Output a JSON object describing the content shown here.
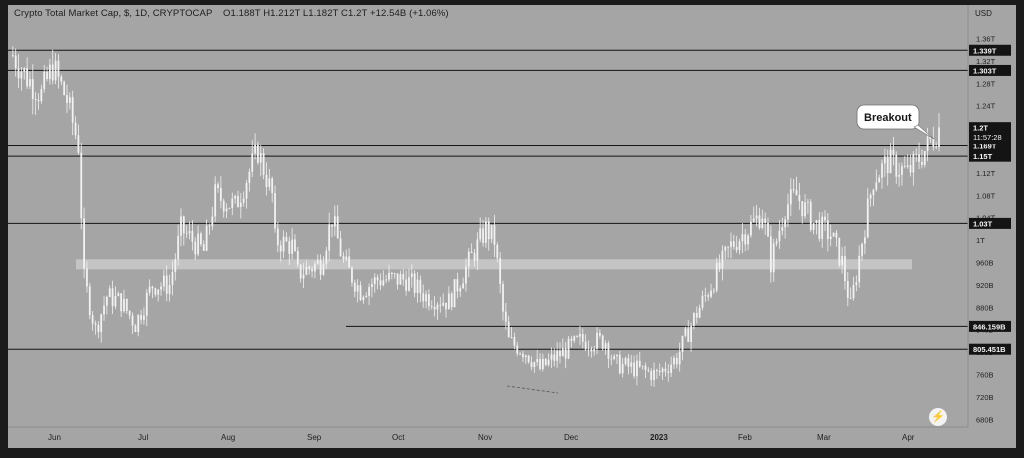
{
  "header": {
    "title": "Crypto Total Market Cap, $, 1D, CRYPTOCAP",
    "ohlc": "O1.188T  H1.212T  L1.182T  C1.2T  +12.54B (+1.06%)"
  },
  "price_axis": {
    "currency": "USD"
  },
  "countdown": "11:57:28",
  "annotation": {
    "text": "Breakout"
  },
  "chart_data": {
    "type": "candlestick",
    "title": "Crypto Total Market Cap, $, 1D, CRYPTOCAP",
    "ylabel": "USD",
    "y_ticks": [
      "1.36T",
      "1.32T",
      "1.28T",
      "1.24T",
      "1.2T",
      "1.16T",
      "1.12T",
      "1.08T",
      "1.04T",
      "1T",
      "960B",
      "920B",
      "880B",
      "840B",
      "800B",
      "760B",
      "720B",
      "680B"
    ],
    "x_ticks": [
      "Jun",
      "Jul",
      "Aug",
      "Sep",
      "Oct",
      "Nov",
      "Dec",
      "2023",
      "Feb",
      "Mar",
      "Apr"
    ],
    "current_price": {
      "label": "1.2T",
      "value": 1200000000000
    },
    "horizontal_levels": [
      {
        "label": "1.339T",
        "value": 1339000000000
      },
      {
        "label": "1.303T",
        "value": 1303000000000
      },
      {
        "label": "1.169T",
        "value": 1169000000000
      },
      {
        "label": "1.15T",
        "value": 1150000000000
      },
      {
        "label": "1.03T",
        "value": 1030000000000
      },
      {
        "label": "846.159B",
        "value": 846159000000
      },
      {
        "label": "805.451B",
        "value": 805451000000
      }
    ],
    "support_zone": {
      "low": 948000000000,
      "high": 966000000000
    },
    "price_path": [
      [
        "2022-05-20",
        1330000000000.0
      ],
      [
        "2022-05-25",
        1290000000000.0
      ],
      [
        "2022-05-30",
        1260000000000.0
      ],
      [
        "2022-06-03",
        1310000000000.0
      ],
      [
        "2022-06-08",
        1250000000000.0
      ],
      [
        "2022-06-12",
        1170000000000.0
      ],
      [
        "2022-06-14",
        930000000000.0
      ],
      [
        "2022-06-18",
        840000000000.0
      ],
      [
        "2022-06-22",
        900000000000.0
      ],
      [
        "2022-06-27",
        890000000000.0
      ],
      [
        "2022-07-02",
        850000000000.0
      ],
      [
        "2022-07-08",
        920000000000.0
      ],
      [
        "2022-07-14",
        920000000000.0
      ],
      [
        "2022-07-18",
        1020000000000.0
      ],
      [
        "2022-07-26",
        980000000000.0
      ],
      [
        "2022-07-30",
        1080000000000.0
      ],
      [
        "2022-08-06",
        1060000000000.0
      ],
      [
        "2022-08-14",
        1160000000000.0
      ],
      [
        "2022-08-19",
        1080000000000.0
      ],
      [
        "2022-08-20",
        1000000000000.0
      ],
      [
        "2022-08-26",
        990000000000.0
      ],
      [
        "2022-08-28",
        940000000000.0
      ],
      [
        "2022-09-05",
        960000000000.0
      ],
      [
        "2022-09-09",
        1040000000000.0
      ],
      [
        "2022-09-13",
        960000000000.0
      ],
      [
        "2022-09-19",
        910000000000.0
      ],
      [
        "2022-09-25",
        930000000000.0
      ],
      [
        "2022-10-05",
        930000000000.0
      ],
      [
        "2022-10-12",
        900000000000.0
      ],
      [
        "2022-10-20",
        890000000000.0
      ],
      [
        "2022-10-27",
        960000000000.0
      ],
      [
        "2022-11-02",
        1020000000000.0
      ],
      [
        "2022-11-05",
        1000000000000.0
      ],
      [
        "2022-11-08",
        870000000000.0
      ],
      [
        "2022-11-10",
        820000000000.0
      ],
      [
        "2022-11-16",
        800000000000.0
      ],
      [
        "2022-11-21",
        770000000000.0
      ],
      [
        "2022-11-26",
        790000000000.0
      ],
      [
        "2022-12-05",
        820000000000.0
      ],
      [
        "2022-12-14",
        820000000000.0
      ],
      [
        "2022-12-17",
        780000000000.0
      ],
      [
        "2022-12-25",
        770000000000.0
      ],
      [
        "2023-01-01",
        760000000000.0
      ],
      [
        "2023-01-08",
        790000000000.0
      ],
      [
        "2023-01-14",
        860000000000.0
      ],
      [
        "2023-01-21",
        930000000000.0
      ],
      [
        "2023-01-27",
        990000000000.0
      ],
      [
        "2023-02-02",
        1020000000000.0
      ],
      [
        "2023-02-07",
        1050000000000.0
      ],
      [
        "2023-02-10",
        960000000000.0
      ],
      [
        "2023-02-15",
        1060000000000.0
      ],
      [
        "2023-02-19",
        1080000000000.0
      ],
      [
        "2023-02-25",
        1030000000000.0
      ],
      [
        "2023-03-03",
        1010000000000.0
      ],
      [
        "2023-03-07",
        960000000000.0
      ],
      [
        "2023-03-10",
        880000000000.0
      ],
      [
        "2023-03-14",
        1000000000000.0
      ],
      [
        "2023-03-18",
        1110000000000.0
      ],
      [
        "2023-03-23",
        1140000000000.0
      ],
      [
        "2023-03-30",
        1120000000000.0
      ],
      [
        "2023-04-05",
        1160000000000.0
      ],
      [
        "2023-04-10",
        1200000000000.0
      ]
    ],
    "grid": false,
    "legend": "none"
  },
  "colors": {
    "background": "#a5a5a5",
    "candle": "#f2f2f2",
    "level_line": "#141414",
    "zone": "#c4c4c4",
    "frame": "#1b1b1b",
    "label_bg": "#141414",
    "label_text": "#f5f5f5"
  }
}
